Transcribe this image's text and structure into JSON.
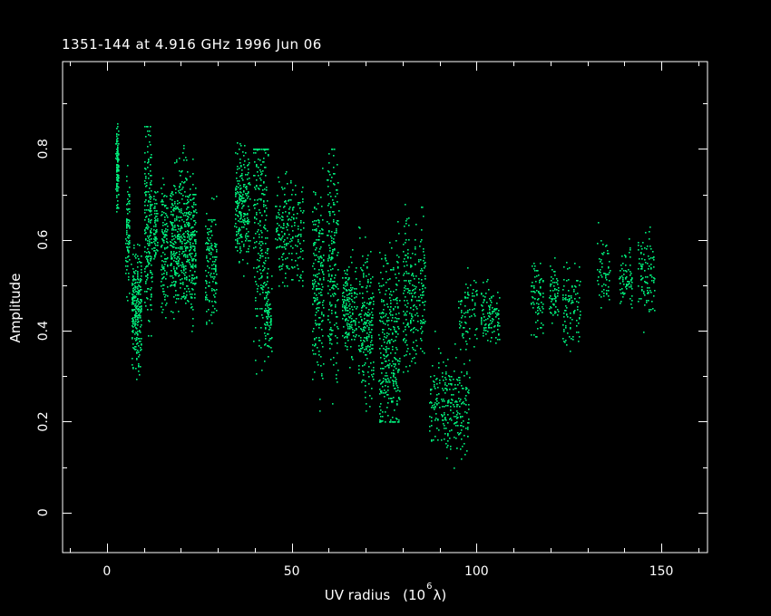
{
  "chart_data": {
    "type": "scatter",
    "title": "1351-144 at 4.916 GHz 1996 Jun 06",
    "xlabel": "UV radius",
    "xlabel_unit": "(10",
    "xlabel_exp": "6",
    "xlabel_unit_end": " λ)",
    "ylabel": "Amplitude",
    "xlim": [
      -12,
      162.5
    ],
    "ylim": [
      -0.088,
      0.992
    ],
    "xticks": [
      "0",
      "50",
      "100",
      "150"
    ],
    "yticks": [
      "0",
      "0.2",
      "0.4",
      "0.6",
      "0.8"
    ],
    "grid": false,
    "point_color": "#00f07c",
    "axis_color": "#ffffff",
    "background": "#000000",
    "point_clusters": [
      {
        "x": [
          2.3,
          3.0
        ],
        "y": [
          0.64,
          0.89
        ],
        "yc": 0.76,
        "n": 120
      },
      {
        "x": [
          5.0,
          6.0
        ],
        "y": [
          0.45,
          0.8
        ],
        "yc": 0.62,
        "n": 90
      },
      {
        "x": [
          6.5,
          9.2
        ],
        "y": [
          0.27,
          0.62
        ],
        "yc": 0.45,
        "n": 260
      },
      {
        "x": [
          10.0,
          12.0
        ],
        "y": [
          0.3,
          0.85
        ],
        "yc": 0.62,
        "n": 200
      },
      {
        "x": [
          12.5,
          13.5
        ],
        "y": [
          0.5,
          0.75
        ],
        "yc": 0.62,
        "n": 70
      },
      {
        "x": [
          14.5,
          16.3
        ],
        "y": [
          0.4,
          0.8
        ],
        "yc": 0.58,
        "n": 120
      },
      {
        "x": [
          17.0,
          24.0
        ],
        "y": [
          0.4,
          0.84
        ],
        "yc": 0.6,
        "n": 520
      },
      {
        "x": [
          26.5,
          29.5
        ],
        "y": [
          0.37,
          0.72
        ],
        "yc": 0.55,
        "n": 140
      },
      {
        "x": [
          34.5,
          38.5
        ],
        "y": [
          0.5,
          0.82
        ],
        "yc": 0.68,
        "n": 230
      },
      {
        "x": [
          39.5,
          43.5
        ],
        "y": [
          0.22,
          0.8
        ],
        "yc": 0.62,
        "n": 240
      },
      {
        "x": [
          42.5,
          44.5
        ],
        "y": [
          0.3,
          0.55
        ],
        "yc": 0.42,
        "n": 70
      },
      {
        "x": [
          45.5,
          53.0
        ],
        "y": [
          0.5,
          0.8
        ],
        "yc": 0.62,
        "n": 200
      },
      {
        "x": [
          55.5,
          58.5
        ],
        "y": [
          0.18,
          0.8
        ],
        "yc": 0.5,
        "n": 200
      },
      {
        "x": [
          59.5,
          62.5
        ],
        "y": [
          0.17,
          0.8
        ],
        "yc": 0.55,
        "n": 190
      },
      {
        "x": [
          63.5,
          67.5
        ],
        "y": [
          0.3,
          0.6
        ],
        "yc": 0.45,
        "n": 170
      },
      {
        "x": [
          68.0,
          72.0
        ],
        "y": [
          0.2,
          0.66
        ],
        "yc": 0.42,
        "n": 210
      },
      {
        "x": [
          73.5,
          79.0
        ],
        "y": [
          0.2,
          0.68
        ],
        "yc": 0.36,
        "n": 330
      },
      {
        "x": [
          80.0,
          86.0
        ],
        "y": [
          0.3,
          0.72
        ],
        "yc": 0.48,
        "n": 230
      },
      {
        "x": [
          87.0,
          98.0
        ],
        "y": [
          0.07,
          0.4
        ],
        "yc": 0.24,
        "n": 260
      },
      {
        "x": [
          95.0,
          100.0
        ],
        "y": [
          0.33,
          0.54
        ],
        "yc": 0.44,
        "n": 80
      },
      {
        "x": [
          101.0,
          106.0
        ],
        "y": [
          0.34,
          0.53
        ],
        "yc": 0.44,
        "n": 110
      },
      {
        "x": [
          114.5,
          118.0
        ],
        "y": [
          0.37,
          0.6
        ],
        "yc": 0.48,
        "n": 80
      },
      {
        "x": [
          119.5,
          122.0
        ],
        "y": [
          0.38,
          0.58
        ],
        "yc": 0.48,
        "n": 60
      },
      {
        "x": [
          123.0,
          128.0
        ],
        "y": [
          0.33,
          0.57
        ],
        "yc": 0.46,
        "n": 100
      },
      {
        "x": [
          132.5,
          136.0
        ],
        "y": [
          0.44,
          0.65
        ],
        "yc": 0.54,
        "n": 60
      },
      {
        "x": [
          138.5,
          142.0
        ],
        "y": [
          0.41,
          0.62
        ],
        "yc": 0.52,
        "n": 70
      },
      {
        "x": [
          143.5,
          148.0
        ],
        "y": [
          0.37,
          0.63
        ],
        "yc": 0.52,
        "n": 100
      }
    ]
  }
}
